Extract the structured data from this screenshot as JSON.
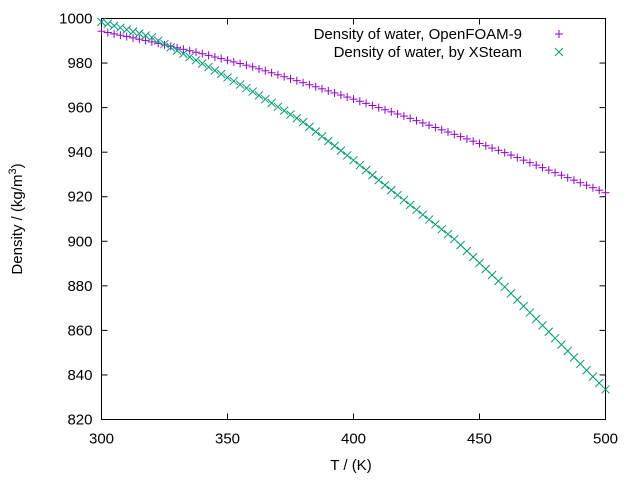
{
  "chart_data": {
    "type": "scatter",
    "xlabel": "T / (K)",
    "ylabel_parts": {
      "prefix": "Density / (kg/m",
      "superscript": "3",
      "suffix": ")"
    },
    "xlim": [
      300,
      500
    ],
    "ylim": [
      820,
      1000
    ],
    "x_ticks": [
      300,
      350,
      400,
      450,
      500
    ],
    "y_ticks": [
      820,
      840,
      860,
      880,
      900,
      920,
      940,
      960,
      980,
      1000
    ],
    "grid": false,
    "legend_position": "top-right",
    "series": [
      {
        "name": "Density of water, OpenFOAM-9",
        "marker": "plus",
        "color": "#9400d3",
        "x_start": 300,
        "x_end": 500,
        "x_step": 2.5,
        "y_points": [
          [
            300,
            994.3
          ],
          [
            320,
            989.5
          ],
          [
            340,
            984.2
          ],
          [
            360,
            978.3
          ],
          [
            380,
            971.2
          ],
          [
            400,
            963.8
          ],
          [
            420,
            956.2
          ],
          [
            440,
            948.0
          ],
          [
            460,
            939.8
          ],
          [
            480,
            930.8
          ],
          [
            500,
            921.8
          ]
        ]
      },
      {
        "name": "Density of water, by XSteam",
        "marker": "x",
        "color": "#009e73",
        "x_start": 300,
        "x_end": 500,
        "x_step": 2.5,
        "y_points": [
          [
            300,
            998.5
          ],
          [
            320,
            991.5
          ],
          [
            340,
            979.8
          ],
          [
            360,
            967.2
          ],
          [
            380,
            953.5
          ],
          [
            400,
            936.4
          ],
          [
            420,
            918.5
          ],
          [
            440,
            901.0
          ],
          [
            460,
            879.5
          ],
          [
            480,
            856.5
          ],
          [
            500,
            833.5
          ]
        ]
      }
    ]
  }
}
